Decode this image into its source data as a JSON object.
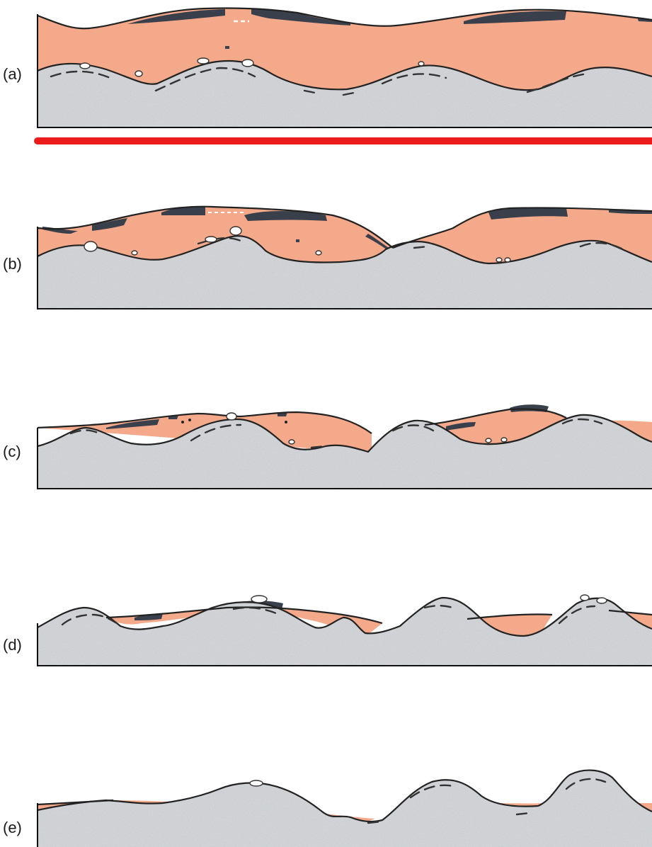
{
  "panels": [
    {
      "id": "a",
      "label": "(a)"
    },
    {
      "id": "b",
      "label": "(b)"
    },
    {
      "id": "c",
      "label": "(c)"
    },
    {
      "id": "d",
      "label": "(d)"
    },
    {
      "id": "e",
      "label": "(e)"
    }
  ],
  "colors": {
    "sediment": "#f4a98a",
    "bedrock": "#d3d6da",
    "dark_layer": "#3a3f4c",
    "red_line": "#ec1c1c",
    "outline": "#222222"
  }
}
